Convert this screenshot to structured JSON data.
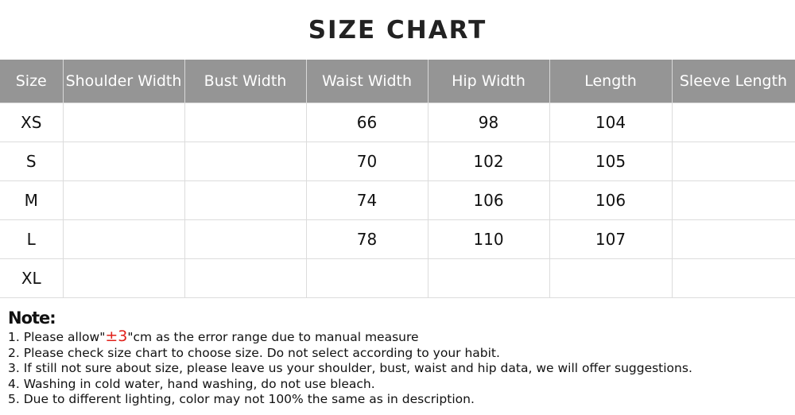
{
  "title": "SIZE CHART",
  "table": {
    "headers": [
      "Size",
      "Shoulder Width",
      "Bust Width",
      "Waist Width",
      "Hip Width",
      "Length",
      "Sleeve Length"
    ],
    "rows": [
      [
        "XS",
        "",
        "",
        "66",
        "98",
        "104",
        ""
      ],
      [
        "S",
        "",
        "",
        "70",
        "102",
        "105",
        ""
      ],
      [
        "M",
        "",
        "",
        "74",
        "106",
        "106",
        ""
      ],
      [
        "L",
        "",
        "",
        "78",
        "110",
        "107",
        ""
      ],
      [
        "XL",
        "",
        "",
        "",
        "",
        "",
        ""
      ]
    ]
  },
  "notes": {
    "heading": "Note:",
    "item1_pre": "1. Please allow\"",
    "item1_highlight": "±3",
    "item1_post": "\"cm as the error range due to manual measure",
    "items": [
      "2. Please check size chart to choose size. Do not select according to your habit.",
      "3. If still not sure about size, please leave us your shoulder, bust, waist and hip data, we will offer suggestions.",
      "4. Washing in cold water, hand washing, do not use bleach.",
      "5. Due to different lighting, color may not 100% the same as in description."
    ],
    "highlight_color": "#e0201a"
  },
  "colors": {
    "header_bg": "#959595",
    "header_text": "#ffffff"
  }
}
